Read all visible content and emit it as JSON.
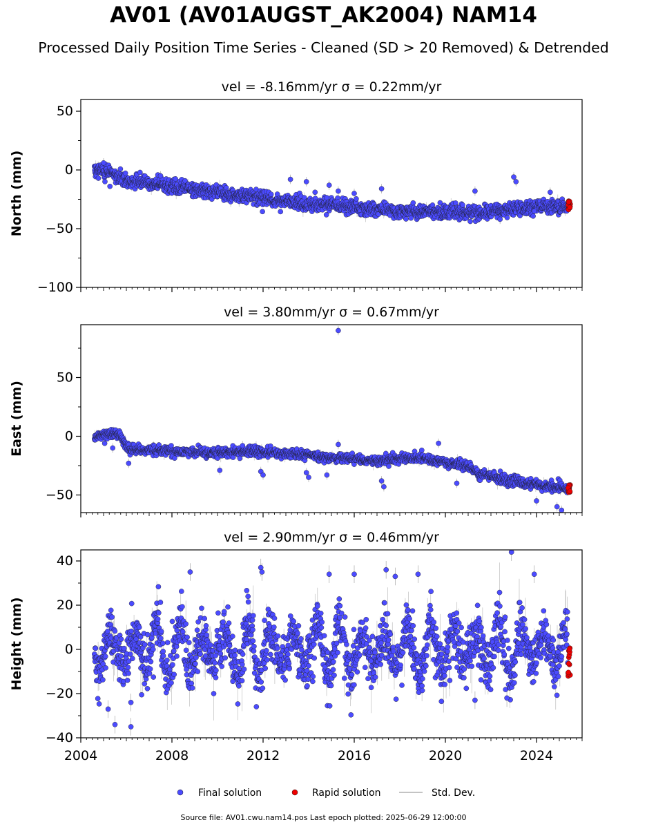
{
  "title": "AV01 (AV01AUGST_AK2004) NAM14",
  "subtitle": "Processed Daily Position Time Series - Cleaned (SD > 20 Removed) & Detrended",
  "footer": "Source file: AV01.cwu.nam14.pos  Last epoch plotted: 2025-06-29 12:00:00",
  "legend": {
    "final": "Final solution",
    "rapid": "Rapid solution",
    "std": "Std. Dev."
  },
  "colors": {
    "final": "#4b4bff",
    "rapid": "#ee0000",
    "std": "#b0b0b0",
    "edge": "#1a1a1a"
  },
  "chart_data": [
    {
      "type": "scatter",
      "panel": "north",
      "title": "vel = -8.16mm/yr   σ = 0.22mm/yr",
      "ylabel": "North (mm)",
      "xlim": [
        2004.0,
        2026.0
      ],
      "ylim": [
        -100,
        60
      ],
      "yticks": [
        -100,
        -50,
        0,
        50
      ],
      "ytick_labels": [
        "−100",
        "−50",
        "0",
        "50"
      ],
      "trend": [
        [
          2004.6,
          0
        ],
        [
          2005.3,
          -2
        ],
        [
          2006,
          -9
        ],
        [
          2008,
          -14
        ],
        [
          2010,
          -19
        ],
        [
          2012,
          -24
        ],
        [
          2014,
          -29
        ],
        [
          2016,
          -32
        ],
        [
          2018,
          -35
        ],
        [
          2020,
          -36
        ],
        [
          2021.5,
          -36
        ],
        [
          2023,
          -33
        ],
        [
          2025.45,
          -30
        ]
      ],
      "scatter_sd": 3.0,
      "outliers": [
        [
          2005.0,
          6
        ],
        [
          2007.5,
          -5
        ],
        [
          2013.2,
          -8
        ],
        [
          2013.9,
          -10
        ],
        [
          2014.9,
          -13
        ],
        [
          2015.3,
          -18
        ],
        [
          2016.0,
          -20
        ],
        [
          2017.2,
          -16
        ],
        [
          2021.3,
          -18
        ],
        [
          2023.0,
          -6
        ],
        [
          2023.1,
          -10
        ],
        [
          2022.4,
          -42
        ],
        [
          2023.9,
          -35
        ],
        [
          2024.6,
          -19
        ]
      ],
      "rapid_x": [
        2025.38,
        2025.48
      ],
      "rapid_y": [
        -34,
        -26
      ]
    },
    {
      "type": "scatter",
      "panel": "east",
      "title": "vel = 3.80mm/yr   σ = 0.67mm/yr",
      "ylabel": "East (mm)",
      "xlim": [
        2004.0,
        2026.0
      ],
      "ylim": [
        -65,
        95
      ],
      "yticks": [
        -50,
        0,
        50
      ],
      "ytick_labels": [
        "−50",
        "0",
        "50"
      ],
      "trend": [
        [
          2004.6,
          0
        ],
        [
          2005.3,
          2
        ],
        [
          2005.7,
          1
        ],
        [
          2006.1,
          -11
        ],
        [
          2008,
          -13
        ],
        [
          2010,
          -14
        ],
        [
          2012,
          -13
        ],
        [
          2014,
          -16
        ],
        [
          2016,
          -20
        ],
        [
          2017,
          -21
        ],
        [
          2018,
          -19
        ],
        [
          2019,
          -19
        ],
        [
          2020,
          -22
        ],
        [
          2021,
          -26
        ],
        [
          2021.5,
          -32
        ],
        [
          2022.5,
          -37
        ],
        [
          2024,
          -41
        ],
        [
          2025.45,
          -45
        ]
      ],
      "scatter_sd": 2.0,
      "outliers": [
        [
          2015.3,
          90
        ],
        [
          2015.3,
          -7
        ],
        [
          2006.1,
          -23
        ],
        [
          2010.1,
          -29
        ],
        [
          2011.9,
          -30
        ],
        [
          2012.0,
          -33
        ],
        [
          2013.9,
          -31
        ],
        [
          2014.0,
          -35
        ],
        [
          2014.8,
          -33
        ],
        [
          2017.2,
          -38
        ],
        [
          2017.3,
          -43
        ],
        [
          2019.7,
          -6
        ],
        [
          2020.5,
          -40
        ],
        [
          2024.0,
          -55
        ],
        [
          2024.9,
          -60
        ],
        [
          2025.1,
          -63
        ],
        [
          2011.1,
          -8
        ],
        [
          2005.4,
          -10
        ]
      ],
      "rapid_x": [
        2025.38,
        2025.48
      ],
      "rapid_y": [
        -48,
        -41
      ]
    },
    {
      "type": "scatter",
      "panel": "height",
      "title": "vel = 2.90mm/yr   σ = 0.46mm/yr",
      "ylabel": "Height (mm)",
      "xlim": [
        2004.0,
        2026.0
      ],
      "ylim": [
        -40,
        45
      ],
      "yticks": [
        -40,
        -20,
        0,
        20,
        40
      ],
      "ytick_labels": [
        "−40",
        "−20",
        "0",
        "20",
        "40"
      ],
      "xticks": [
        2004,
        2008,
        2012,
        2016,
        2020,
        2024
      ],
      "xtick_labels": [
        "2004",
        "2008",
        "2012",
        "2016",
        "2020",
        "2024"
      ],
      "trend": [
        [
          2004.6,
          0
        ],
        [
          2025.45,
          0
        ]
      ],
      "seasonal_amplitude": 11,
      "scatter_sd": 6.0,
      "outliers": [
        [
          2006.2,
          -35
        ],
        [
          2005.5,
          -34
        ],
        [
          2008.8,
          35
        ],
        [
          2011.9,
          37
        ],
        [
          2011.95,
          35
        ],
        [
          2014.9,
          34
        ],
        [
          2016.0,
          34
        ],
        [
          2017.4,
          36
        ],
        [
          2017.8,
          33
        ],
        [
          2018.8,
          34
        ],
        [
          2022.9,
          44
        ],
        [
          2023.9,
          34
        ],
        [
          2022.7,
          -22
        ],
        [
          2021.3,
          -23
        ],
        [
          2005.2,
          -27
        ],
        [
          2006.2,
          -24
        ]
      ],
      "rapid_x": [
        2025.38,
        2025.48
      ],
      "rapid_y": [
        -15,
        1
      ]
    }
  ]
}
